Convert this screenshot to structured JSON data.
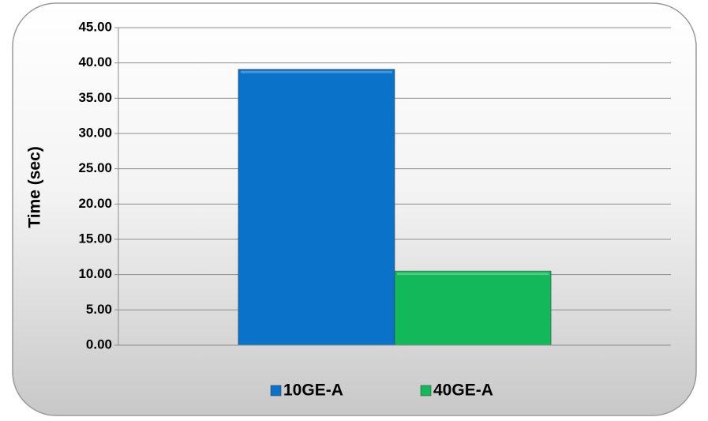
{
  "chart_data": {
    "type": "bar",
    "y_label": "Time (sec)",
    "categories": [
      null
    ],
    "series": [
      {
        "name": "10GE-A",
        "color": "#0a72c8",
        "values": [
          39.1
        ]
      },
      {
        "name": "40GE-A",
        "color": "#12b85a",
        "values": [
          10.5
        ]
      }
    ],
    "ylim": [
      0,
      45
    ],
    "yticks": [
      {
        "value": 0,
        "label": "0.00"
      },
      {
        "value": 5,
        "label": "5.00"
      },
      {
        "value": 10,
        "label": "10.00"
      },
      {
        "value": 15,
        "label": "15.00"
      },
      {
        "value": 20,
        "label": "20.00"
      },
      {
        "value": 25,
        "label": "25.00"
      },
      {
        "value": 30,
        "label": "30.00"
      },
      {
        "value": 35,
        "label": "35.00"
      },
      {
        "value": 40,
        "label": "40.00"
      },
      {
        "value": 45,
        "label": "45.00"
      }
    ],
    "grid": true,
    "legend": "bottom"
  }
}
